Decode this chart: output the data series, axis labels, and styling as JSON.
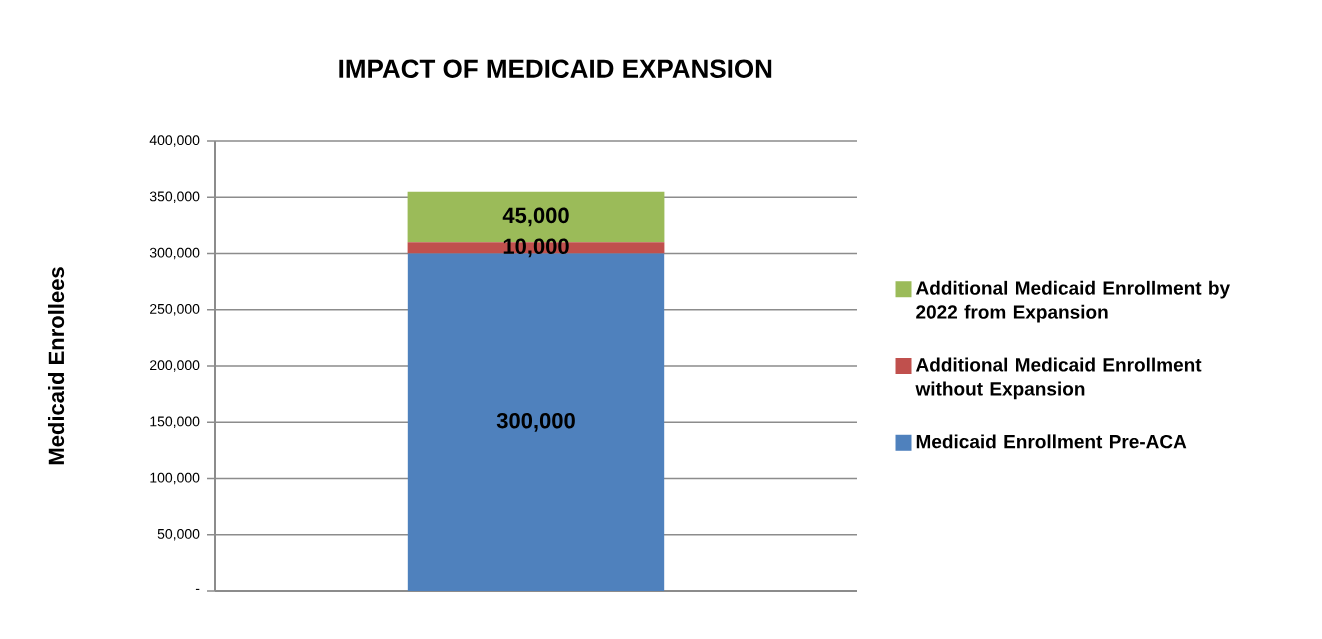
{
  "chart_data": {
    "type": "bar",
    "title": "IMPACT OF MEDICAID EXPANSION",
    "ylabel": "Medicaid Enrollees",
    "categories": [
      null
    ],
    "stacked": true,
    "series": [
      {
        "name": "Medicaid Enrollment Pre-ACA",
        "color": "#4f81bd",
        "values": [
          300000
        ],
        "value_labels": [
          "300,000"
        ]
      },
      {
        "name": "Additional Medicaid Enrollment without Expansion",
        "color": "#c0504d",
        "values": [
          10000
        ],
        "value_labels": [
          "10,000"
        ]
      },
      {
        "name": "Additional Medicaid Enrollment by 2022 from Expansion",
        "color": "#9bbb59",
        "values": [
          45000
        ],
        "value_labels": [
          "45,000"
        ]
      }
    ],
    "ylim": [
      0,
      400000
    ],
    "yticks": [
      {
        "value": 0,
        "label": "-"
      },
      {
        "value": 50000,
        "label": "50,000"
      },
      {
        "value": 100000,
        "label": "100,000"
      },
      {
        "value": 150000,
        "label": "150,000"
      },
      {
        "value": 200000,
        "label": "200,000"
      },
      {
        "value": 250000,
        "label": "250,000"
      },
      {
        "value": 300000,
        "label": "300,000"
      },
      {
        "value": 350000,
        "label": "350,000"
      },
      {
        "value": 400000,
        "label": "400,000"
      }
    ],
    "grid": "y",
    "legend": "right"
  }
}
